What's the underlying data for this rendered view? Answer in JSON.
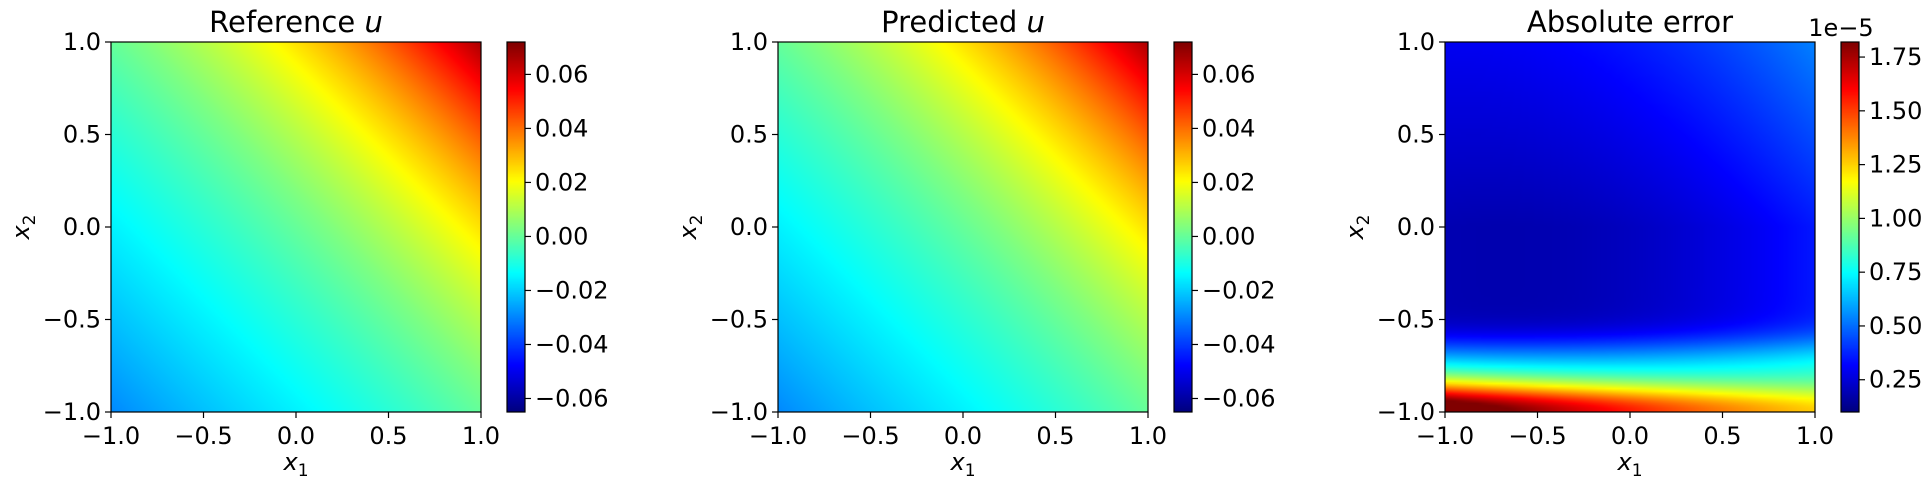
{
  "figure": {
    "background": "#ffffff"
  },
  "chart_data": [
    {
      "type": "heatmap",
      "title": "Reference u",
      "title_text": "Reference ",
      "title_var": "u",
      "xlabel_var": "x",
      "xlabel_sub": "1",
      "ylabel_var": "x",
      "ylabel_sub": "2",
      "xlim": [
        -1.0,
        1.0
      ],
      "ylim": [
        -1.0,
        1.0
      ],
      "xticks": [
        -1.0,
        -0.5,
        0.0,
        0.5,
        1.0
      ],
      "xtick_labels": [
        "−1.0",
        "−0.5",
        "0.0",
        "0.5",
        "1.0"
      ],
      "yticks": [
        -1.0,
        -0.5,
        0.0,
        0.5,
        1.0
      ],
      "ytick_labels": [
        "−1.0",
        "−0.5",
        "0.0",
        "0.5",
        "1.0"
      ],
      "colormap": "jet",
      "colorbar": {
        "range": [
          -0.065,
          0.072
        ],
        "ticks": [
          -0.06,
          -0.04,
          -0.02,
          0.0,
          0.02,
          0.04,
          0.06
        ],
        "tick_labels": [
          "−0.06",
          "−0.04",
          "−0.02",
          "0.00",
          "0.02",
          "0.04",
          "0.06"
        ],
        "offset_label": ""
      },
      "field": "reference"
    },
    {
      "type": "heatmap",
      "title": "Predicted u",
      "title_text": "Predicted ",
      "title_var": "u",
      "xlabel_var": "x",
      "xlabel_sub": "1",
      "ylabel_var": "x",
      "ylabel_sub": "2",
      "xlim": [
        -1.0,
        1.0
      ],
      "ylim": [
        -1.0,
        1.0
      ],
      "xticks": [
        -1.0,
        -0.5,
        0.0,
        0.5,
        1.0
      ],
      "xtick_labels": [
        "−1.0",
        "−0.5",
        "0.0",
        "0.5",
        "1.0"
      ],
      "yticks": [
        -1.0,
        -0.5,
        0.0,
        0.5,
        1.0
      ],
      "ytick_labels": [
        "−1.0",
        "−0.5",
        "0.0",
        "0.5",
        "1.0"
      ],
      "colormap": "jet",
      "colorbar": {
        "range": [
          -0.065,
          0.072
        ],
        "ticks": [
          -0.06,
          -0.04,
          -0.02,
          0.0,
          0.02,
          0.04,
          0.06
        ],
        "tick_labels": [
          "−0.06",
          "−0.04",
          "−0.02",
          "0.00",
          "0.02",
          "0.04",
          "0.06"
        ],
        "offset_label": ""
      },
      "field": "predicted"
    },
    {
      "type": "heatmap",
      "title": "Absolute error",
      "title_text": "Absolute error",
      "title_var": "",
      "xlabel_var": "x",
      "xlabel_sub": "1",
      "ylabel_var": "x",
      "ylabel_sub": "2",
      "xlim": [
        -1.0,
        1.0
      ],
      "ylim": [
        -1.0,
        1.0
      ],
      "xticks": [
        -1.0,
        -0.5,
        0.0,
        0.5,
        1.0
      ],
      "xtick_labels": [
        "−1.0",
        "−0.5",
        "0.0",
        "0.5",
        "1.0"
      ],
      "yticks": [
        -1.0,
        -0.5,
        0.0,
        0.5,
        1.0
      ],
      "ytick_labels": [
        "−1.0",
        "−0.5",
        "0.0",
        "0.5",
        "1.0"
      ],
      "colormap": "jet",
      "colorbar": {
        "range": [
          0.1,
          1.82
        ],
        "ticks": [
          0.25,
          0.5,
          0.75,
          1.0,
          1.25,
          1.5,
          1.75
        ],
        "tick_labels": [
          "0.25",
          "0.50",
          "0.75",
          "1.00",
          "1.25",
          "1.50",
          "1.75"
        ],
        "offset_label": "1e−5"
      },
      "field": "error"
    }
  ]
}
